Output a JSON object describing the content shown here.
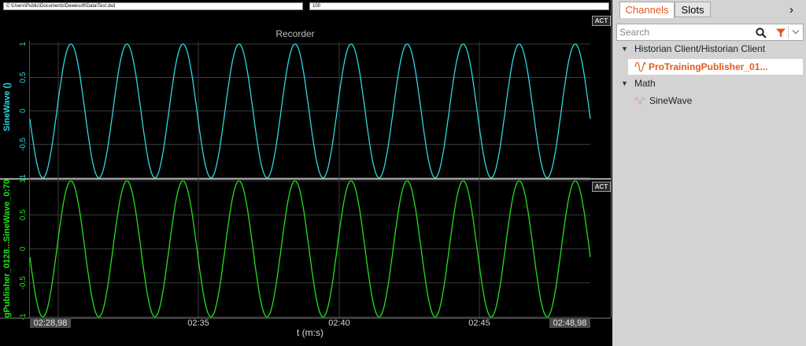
{
  "toolbar": {
    "file_path": "C:\\Users\\Public\\Documents\\Dewesoft\\Data\\Test.dxd",
    "value_field": "100"
  },
  "chart": {
    "title": "Recorder",
    "act_label": "ACT",
    "x_axis_label": "t (m:s)",
    "x_start_label": "02:28,98",
    "x_end_label": "02:48,98",
    "x_ticks": [
      "02:35",
      "02:40",
      "02:45"
    ],
    "y_ticks": [
      "1",
      "0,5",
      "0",
      "-0,5",
      "-1"
    ]
  },
  "chart_data": [
    {
      "type": "line",
      "title": "Recorder",
      "ylabel": "SineWave ()",
      "xlabel": "t (m:s)",
      "xlim": [
        "02:28,98",
        "02:48,98"
      ],
      "ylim": [
        -1,
        1
      ],
      "cycles_shown": 10,
      "color": "#2ed8e0",
      "series": [
        {
          "name": "SineWave ()",
          "waveform": "sine",
          "amplitude": 1,
          "period_s": 2
        }
      ]
    },
    {
      "type": "line",
      "ylabel": "gPublisher_0128...SineWave_0:70",
      "xlabel": "t (m:s)",
      "xlim": [
        "02:28,98",
        "02:48,98"
      ],
      "ylim": [
        -1,
        1
      ],
      "cycles_shown": 10,
      "color": "#22e01a",
      "series": [
        {
          "name": "gPublisher_0128...SineWave_0:70",
          "waveform": "sine",
          "amplitude": 1,
          "period_s": 2
        }
      ]
    }
  ],
  "sidebar": {
    "tabs": [
      "Channels",
      "Slots"
    ],
    "search_placeholder": "Search",
    "tree": {
      "group1": "Historian Client/Historian Client",
      "group1_channel": "ProTrainingPublisher_01...",
      "group2": "Math",
      "group2_channel": "SineWave"
    }
  }
}
